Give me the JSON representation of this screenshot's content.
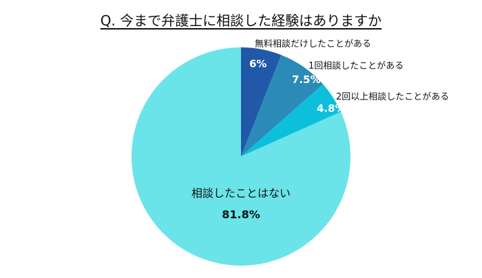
{
  "chart_data": {
    "type": "pie",
    "title": "Q. 今まで弁護士に相談した経験はありますか",
    "start": "top",
    "direction": "clockwise",
    "slices": [
      {
        "label": "無料相談だけしたことがある",
        "value": 6,
        "value_label": "6%",
        "color": "#2158a8"
      },
      {
        "label": "1回相談したことがある",
        "value": 7.5,
        "value_label": "7.5%",
        "color": "#2b8ab8"
      },
      {
        "label": "2回以上相談したことがある",
        "value": 4.8,
        "value_label": "4.8%",
        "color": "#0cc0dc"
      },
      {
        "label": "相談したことはない",
        "value": 81.8,
        "value_label": "81.8%",
        "color": "#6ae4e8"
      }
    ]
  }
}
